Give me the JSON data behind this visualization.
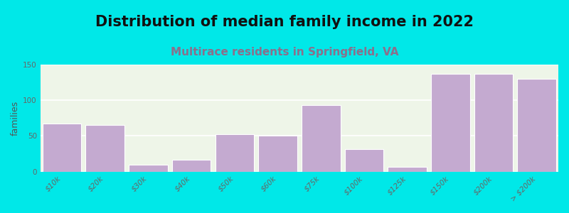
{
  "title": "Distribution of median family income in 2022",
  "subtitle": "Multirace residents in Springfield, VA",
  "ylabel": "families",
  "categories": [
    "$10k",
    "$20k",
    "$30k",
    "$40k",
    "$50k",
    "$60k",
    "$75k",
    "$100k",
    "$125k",
    "$150k",
    "$200k",
    "> $200k"
  ],
  "values": [
    67,
    65,
    10,
    17,
    52,
    50,
    93,
    31,
    7,
    137,
    137,
    130
  ],
  "bar_color": "#c4aad0",
  "bg_outer": "#00e8e8",
  "bg_plot_color": "#eef5e8",
  "ylim": [
    0,
    150
  ],
  "yticks": [
    0,
    50,
    100,
    150
  ],
  "title_fontsize": 15,
  "subtitle_fontsize": 11,
  "subtitle_color": "#8b6f8b",
  "ylabel_fontsize": 9,
  "tick_label_fontsize": 7.5
}
